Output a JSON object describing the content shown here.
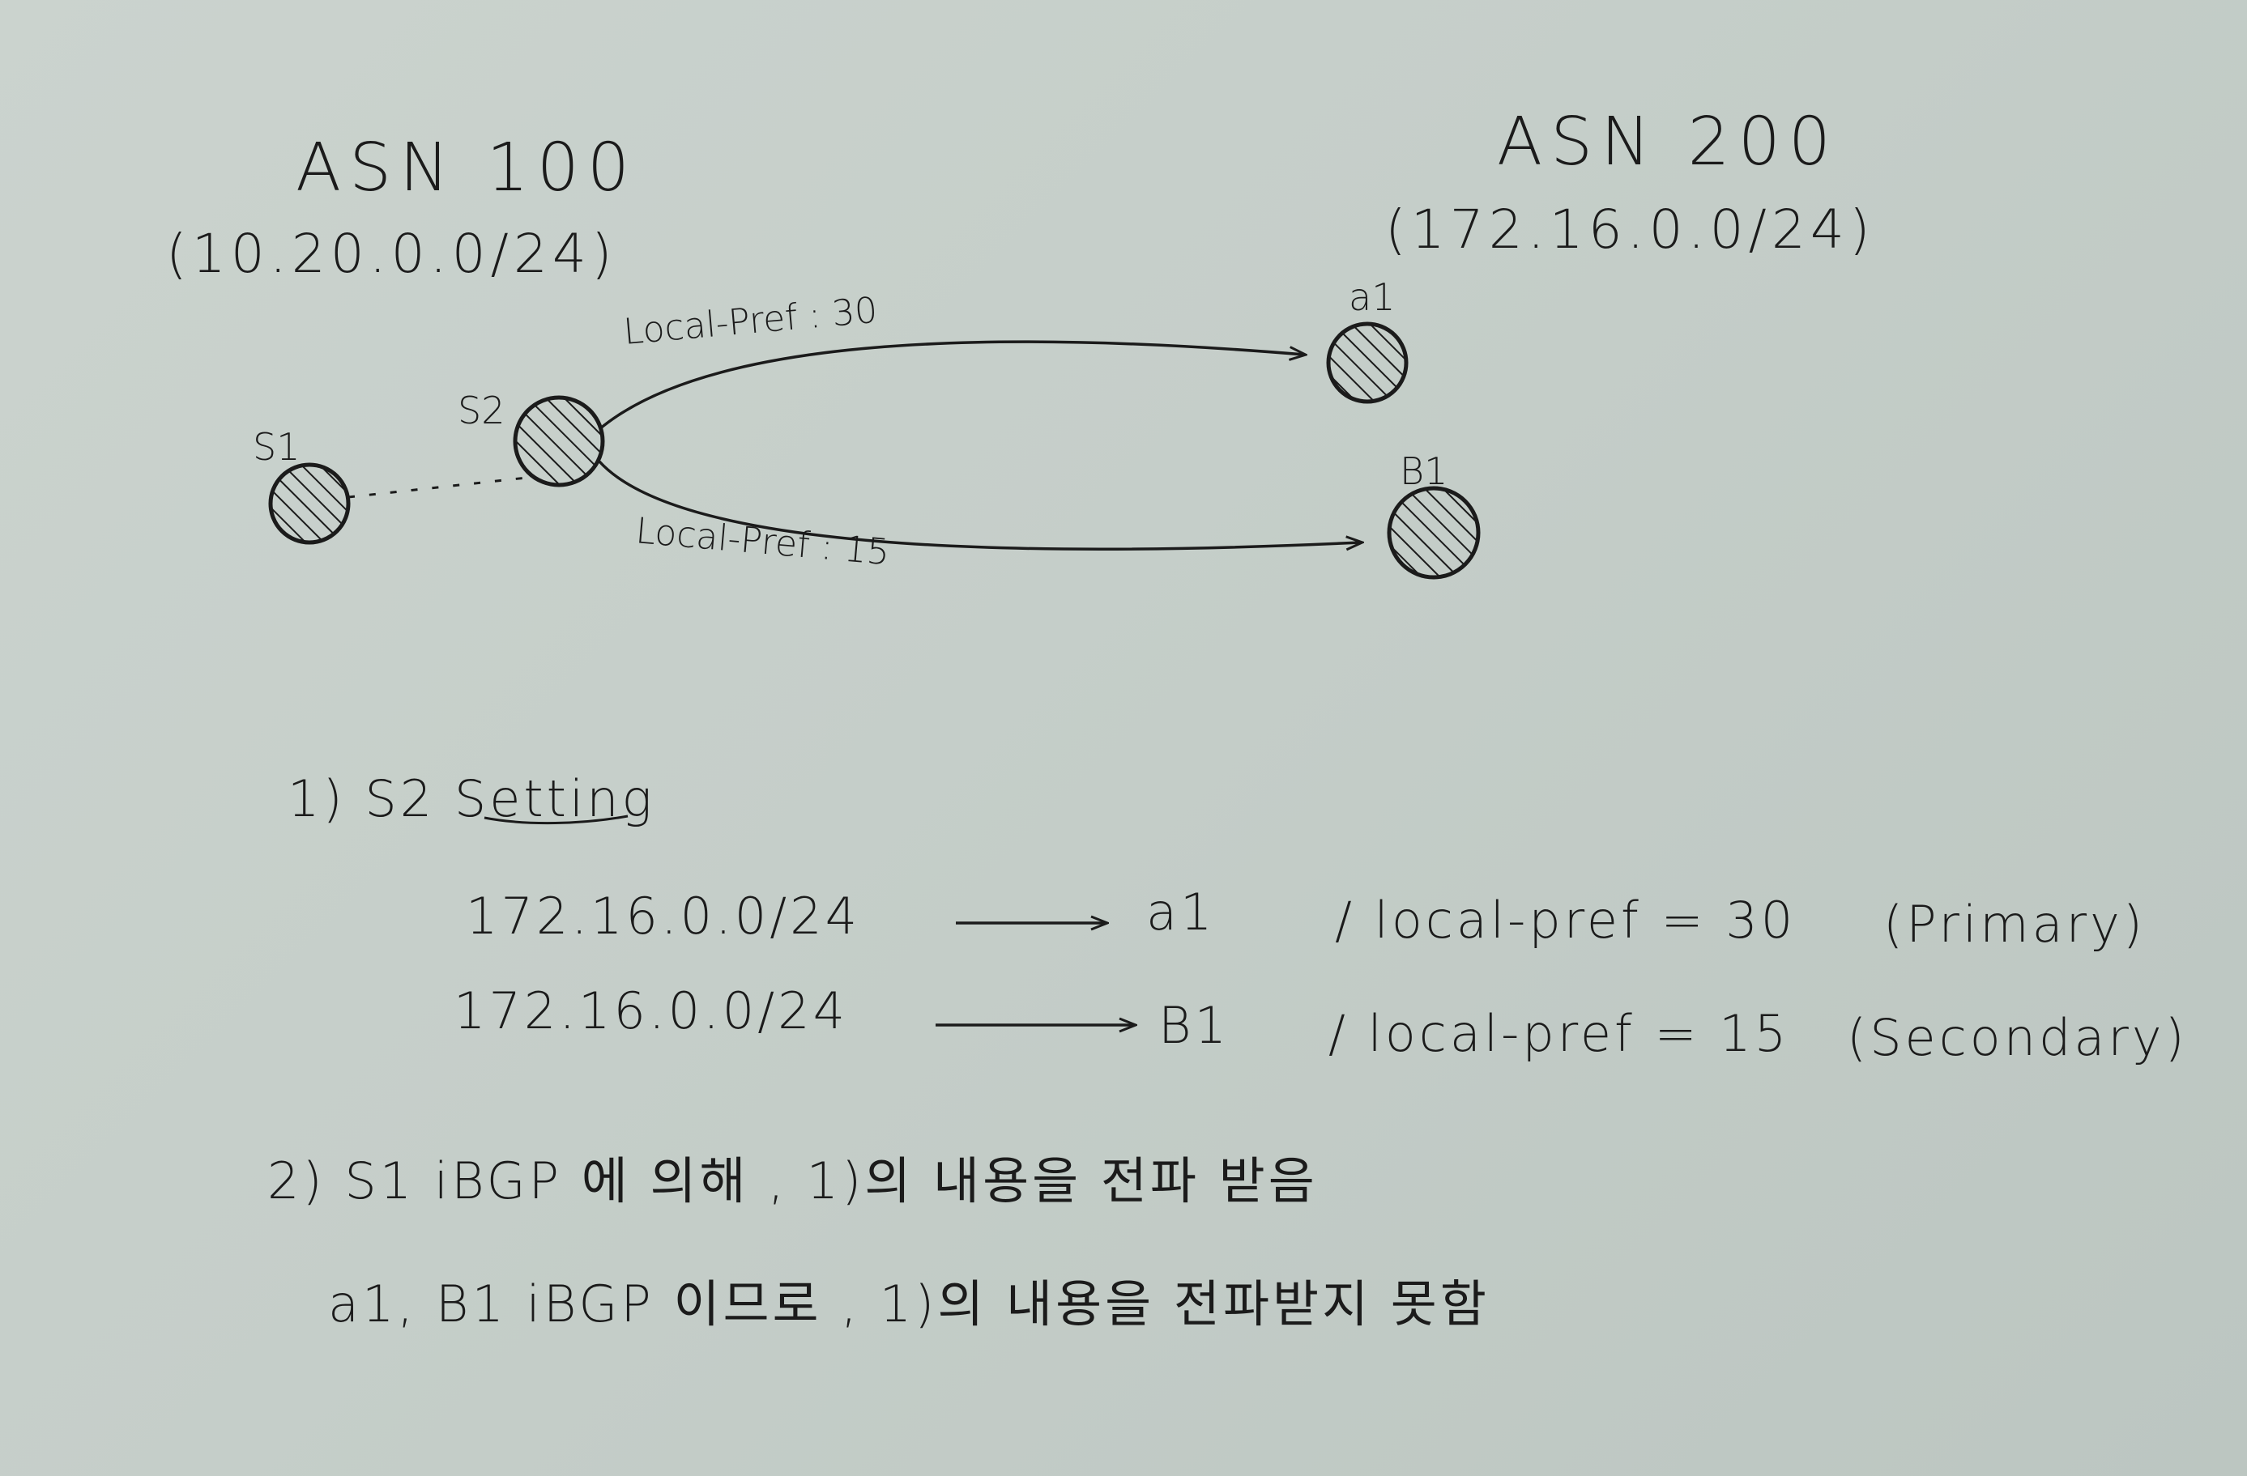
{
  "asn_left": {
    "title": "ASN 100",
    "subnet": "(10.20.0.0/24)"
  },
  "asn_right": {
    "title": "ASN 200",
    "subnet": "(172.16.0.0/24)"
  },
  "nodes": {
    "s1": "S1",
    "s2": "S2",
    "a1": "a1",
    "b1": "B1"
  },
  "links": {
    "s2_a1": "Local-Pref : 30",
    "s2_b1": "Local-Pref : 15"
  },
  "notes": {
    "step1_title": "1) S2 Setting",
    "row1": {
      "prefix": "172.16.0.0/24",
      "target": "a1",
      "pref": "/ local-pref = 30",
      "role": "(Primary)"
    },
    "row2": {
      "prefix": "172.16.0.0/24",
      "target": "B1",
      "pref": "/ local-pref = 15",
      "role": "(Secondary)"
    },
    "step2": "2) S1 iBGP 에 의해 , 1)의 내용을 전파 받음",
    "step3": "a1, B1 iBGP 이므로 , 1)의 내용을 전파받지 못함"
  },
  "colors": {
    "ink": "#1b1b1b",
    "paper": "#c9d1cc"
  }
}
